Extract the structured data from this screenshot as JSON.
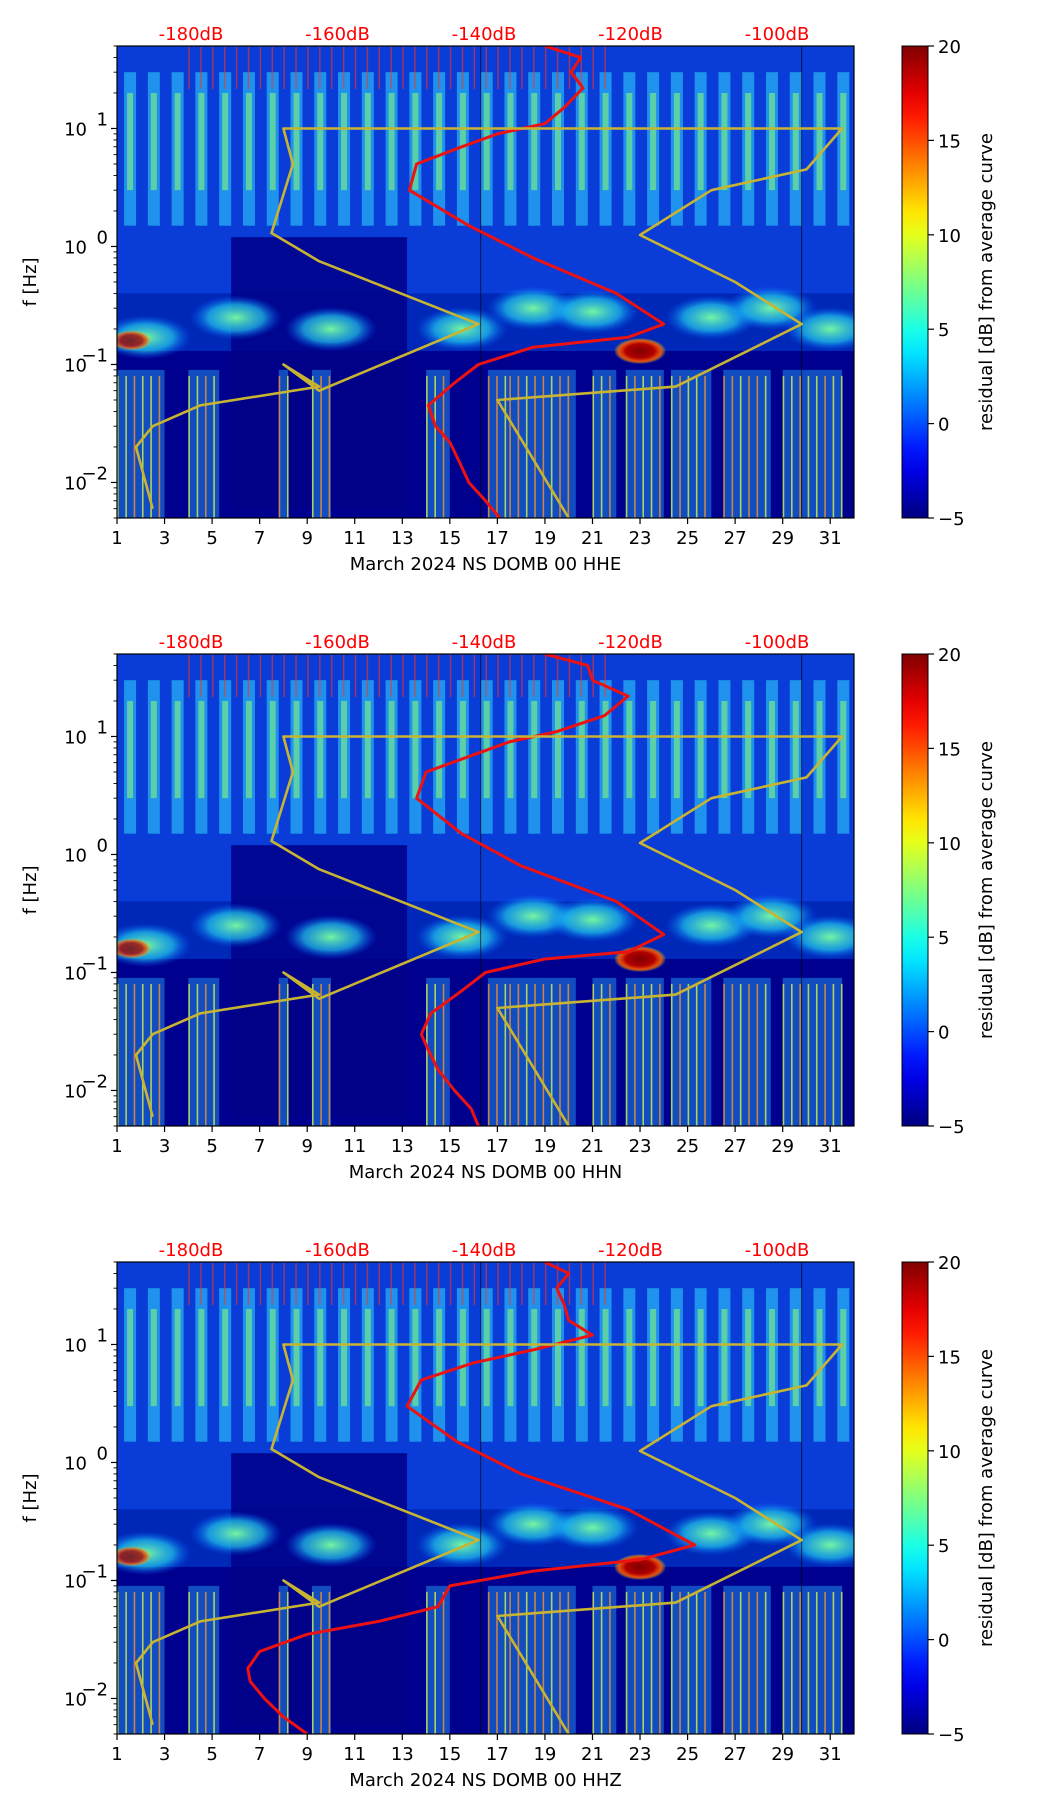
{
  "chart_data": [
    {
      "type": "heatmap",
      "title": "",
      "xlabel": "March 2024 NS DOMB 00 HHE",
      "ylabel": "f [Hz]",
      "xlim": [
        1,
        32
      ],
      "ylim": [
        0.005,
        50
      ],
      "yscale": "log",
      "xticks": [
        "1",
        "3",
        "5",
        "7",
        "9",
        "11",
        "13",
        "15",
        "17",
        "19",
        "21",
        "23",
        "25",
        "27",
        "29",
        "31"
      ],
      "yticks": [
        {
          "v": 0.01,
          "b": "10",
          "e": "−2"
        },
        {
          "v": 0.1,
          "b": "10",
          "e": "−1"
        },
        {
          "v": 1,
          "b": "10",
          "e": "0"
        },
        {
          "v": 10,
          "b": "10",
          "e": "1"
        }
      ],
      "db_labels": [
        "-180dB",
        "-160dB",
        "-140dB",
        "-120dB",
        "-100dB"
      ],
      "colorbar": {
        "label": "residual [dB] from average curve",
        "range": [
          -5,
          20
        ],
        "ticks": [
          "−5",
          "0",
          "5",
          "10",
          "15",
          "20"
        ],
        "colormap": "jet"
      },
      "series": [
        {
          "name": "average PSD",
          "color": "#ee1111",
          "points": [
            [
              17.1,
              0.005
            ],
            [
              16.5,
              0.007
            ],
            [
              15.8,
              0.01
            ],
            [
              15.4,
              0.015
            ],
            [
              15.0,
              0.022
            ],
            [
              14.4,
              0.03
            ],
            [
              14.1,
              0.045
            ],
            [
              15.2,
              0.07
            ],
            [
              16.2,
              0.1
            ],
            [
              18.5,
              0.14
            ],
            [
              22.5,
              0.17
            ],
            [
              24.0,
              0.22
            ],
            [
              22.0,
              0.4
            ],
            [
              18.5,
              0.8
            ],
            [
              15.8,
              1.5
            ],
            [
              13.3,
              3.0
            ],
            [
              13.6,
              5.0
            ],
            [
              15.5,
              7.0
            ],
            [
              17.0,
              9.0
            ],
            [
              19.0,
              11.0
            ],
            [
              19.8,
              15.0
            ],
            [
              20.6,
              22.0
            ],
            [
              20.1,
              30.0
            ],
            [
              20.5,
              40.0
            ],
            [
              19.0,
              50.0
            ]
          ]
        },
        {
          "name": "noise model",
          "color": "#c8b432",
          "points": [
            [
              20.0,
              0.005
            ],
            [
              17.0,
              0.05
            ],
            [
              24.5,
              0.065
            ],
            [
              29.8,
              0.22
            ],
            [
              27.0,
              0.5
            ],
            [
              23.0,
              1.25
            ],
            [
              26.0,
              3.0
            ],
            [
              30.0,
              4.5
            ],
            [
              31.5,
              10.0
            ],
            [
              8.0,
              10.0
            ],
            [
              8.4,
              5.0
            ],
            [
              7.5,
              1.3
            ],
            [
              9.5,
              0.75
            ],
            [
              16.2,
              0.22
            ],
            [
              9.5,
              0.06
            ],
            [
              8.0,
              0.1
            ],
            [
              9.5,
              0.065
            ],
            [
              4.5,
              0.045
            ],
            [
              2.5,
              0.03
            ],
            [
              1.8,
              0.02
            ],
            [
              2.5,
              0.006
            ]
          ]
        }
      ]
    },
    {
      "type": "heatmap",
      "title": "",
      "xlabel": "March 2024 NS DOMB 00 HHN",
      "ylabel": "f [Hz]",
      "xlim": [
        1,
        32
      ],
      "ylim": [
        0.005,
        50
      ],
      "yscale": "log",
      "xticks": [
        "1",
        "3",
        "5",
        "7",
        "9",
        "11",
        "13",
        "15",
        "17",
        "19",
        "21",
        "23",
        "25",
        "27",
        "29",
        "31"
      ],
      "yticks": [
        {
          "v": 0.01,
          "b": "10",
          "e": "−2"
        },
        {
          "v": 0.1,
          "b": "10",
          "e": "−1"
        },
        {
          "v": 1,
          "b": "10",
          "e": "0"
        },
        {
          "v": 10,
          "b": "10",
          "e": "1"
        }
      ],
      "db_labels": [
        "-180dB",
        "-160dB",
        "-140dB",
        "-120dB",
        "-100dB"
      ],
      "colorbar": {
        "label": "residual [dB] from average curve",
        "range": [
          -5,
          20
        ],
        "ticks": [
          "−5",
          "0",
          "5",
          "10",
          "15",
          "20"
        ],
        "colormap": "jet"
      },
      "series": [
        {
          "name": "average PSD",
          "color": "#ee1111",
          "points": [
            [
              16.2,
              0.005
            ],
            [
              15.9,
              0.007
            ],
            [
              15.2,
              0.01
            ],
            [
              14.5,
              0.015
            ],
            [
              14.1,
              0.022
            ],
            [
              13.8,
              0.03
            ],
            [
              14.2,
              0.045
            ],
            [
              15.5,
              0.07
            ],
            [
              16.5,
              0.1
            ],
            [
              19.0,
              0.13
            ],
            [
              22.5,
              0.15
            ],
            [
              24.0,
              0.21
            ],
            [
              22.0,
              0.4
            ],
            [
              18.0,
              0.8
            ],
            [
              15.5,
              1.5
            ],
            [
              13.6,
              3.0
            ],
            [
              14.0,
              5.0
            ],
            [
              16.0,
              7.0
            ],
            [
              17.5,
              9.0
            ],
            [
              19.5,
              11.0
            ],
            [
              21.5,
              15.0
            ],
            [
              22.5,
              22.0
            ],
            [
              21.0,
              30.0
            ],
            [
              20.8,
              40.0
            ],
            [
              19.0,
              50.0
            ]
          ]
        },
        {
          "name": "noise model",
          "color": "#c8b432",
          "points": [
            [
              20.0,
              0.005
            ],
            [
              17.0,
              0.05
            ],
            [
              24.5,
              0.065
            ],
            [
              29.8,
              0.22
            ],
            [
              27.0,
              0.5
            ],
            [
              23.0,
              1.25
            ],
            [
              26.0,
              3.0
            ],
            [
              30.0,
              4.5
            ],
            [
              31.5,
              10.0
            ],
            [
              8.0,
              10.0
            ],
            [
              8.4,
              5.0
            ],
            [
              7.5,
              1.3
            ],
            [
              9.5,
              0.75
            ],
            [
              16.2,
              0.22
            ],
            [
              9.5,
              0.06
            ],
            [
              8.0,
              0.1
            ],
            [
              9.5,
              0.065
            ],
            [
              4.5,
              0.045
            ],
            [
              2.5,
              0.03
            ],
            [
              1.8,
              0.02
            ],
            [
              2.5,
              0.006
            ]
          ]
        }
      ]
    },
    {
      "type": "heatmap",
      "title": "",
      "xlabel": "March 2024 NS DOMB 00 HHZ",
      "ylabel": "f [Hz]",
      "xlim": [
        1,
        32
      ],
      "ylim": [
        0.005,
        50
      ],
      "yscale": "log",
      "xticks": [
        "1",
        "3",
        "5",
        "7",
        "9",
        "11",
        "13",
        "15",
        "17",
        "19",
        "21",
        "23",
        "25",
        "27",
        "29",
        "31"
      ],
      "yticks": [
        {
          "v": 0.01,
          "b": "10",
          "e": "−2"
        },
        {
          "v": 0.1,
          "b": "10",
          "e": "−1"
        },
        {
          "v": 1,
          "b": "10",
          "e": "0"
        },
        {
          "v": 10,
          "b": "10",
          "e": "1"
        }
      ],
      "db_labels": [
        "-180dB",
        "-160dB",
        "-140dB",
        "-120dB",
        "-100dB"
      ],
      "colorbar": {
        "label": "residual [dB] from average curve",
        "range": [
          -5,
          20
        ],
        "ticks": [
          "−5",
          "0",
          "5",
          "10",
          "15",
          "20"
        ],
        "colormap": "jet"
      },
      "series": [
        {
          "name": "average PSD",
          "color": "#ee1111",
          "points": [
            [
              9.0,
              0.005
            ],
            [
              8.0,
              0.007
            ],
            [
              7.2,
              0.01
            ],
            [
              6.6,
              0.014
            ],
            [
              6.5,
              0.018
            ],
            [
              7.0,
              0.025
            ],
            [
              9.0,
              0.035
            ],
            [
              12.0,
              0.045
            ],
            [
              14.5,
              0.06
            ],
            [
              15.0,
              0.09
            ],
            [
              18.5,
              0.12
            ],
            [
              23.0,
              0.15
            ],
            [
              25.3,
              0.2
            ],
            [
              22.5,
              0.4
            ],
            [
              18.0,
              0.8
            ],
            [
              15.3,
              1.5
            ],
            [
              13.2,
              3.0
            ],
            [
              13.8,
              5.0
            ],
            [
              16.0,
              7.0
            ],
            [
              18.5,
              9.0
            ],
            [
              21.0,
              12.0
            ],
            [
              20.0,
              16.0
            ],
            [
              19.8,
              22.0
            ],
            [
              19.5,
              30.0
            ],
            [
              20.0,
              40.0
            ],
            [
              19.0,
              50.0
            ]
          ]
        },
        {
          "name": "noise model",
          "color": "#c8b432",
          "points": [
            [
              20.0,
              0.005
            ],
            [
              17.0,
              0.05
            ],
            [
              24.5,
              0.065
            ],
            [
              29.8,
              0.22
            ],
            [
              27.0,
              0.5
            ],
            [
              23.0,
              1.25
            ],
            [
              26.0,
              3.0
            ],
            [
              30.0,
              4.5
            ],
            [
              31.5,
              10.0
            ],
            [
              8.0,
              10.0
            ],
            [
              8.4,
              5.0
            ],
            [
              7.5,
              1.3
            ],
            [
              9.5,
              0.75
            ],
            [
              16.2,
              0.22
            ],
            [
              9.5,
              0.06
            ],
            [
              8.0,
              0.1
            ],
            [
              9.5,
              0.065
            ],
            [
              4.5,
              0.045
            ],
            [
              2.5,
              0.03
            ],
            [
              1.8,
              0.02
            ],
            [
              2.5,
              0.006
            ]
          ]
        }
      ]
    }
  ]
}
